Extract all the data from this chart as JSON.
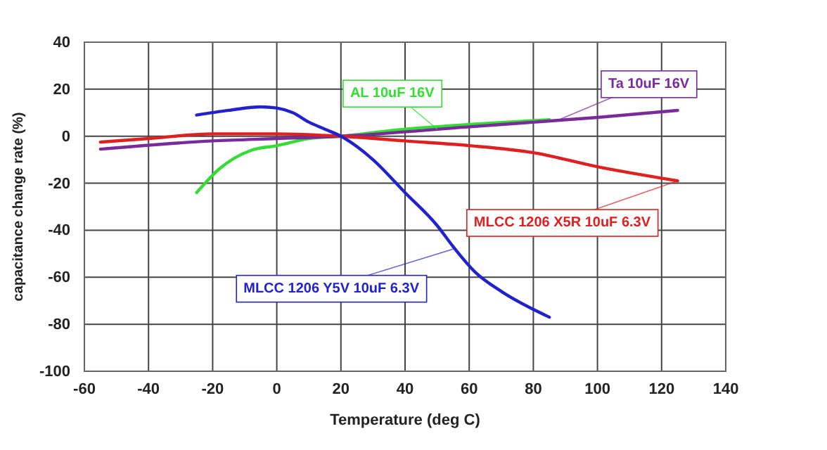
{
  "chart_data": {
    "type": "line",
    "xlabel": "Temperature (deg C)",
    "ylabel": "capacitance change rate (%)",
    "xlim": [
      -60,
      140
    ],
    "xticks": [
      -60,
      -40,
      -20,
      0,
      20,
      40,
      60,
      80,
      100,
      120,
      140
    ],
    "ylim": [
      -100,
      40
    ],
    "yticks": [
      -100,
      -80,
      -60,
      -40,
      -20,
      0,
      20,
      40
    ],
    "grid": true,
    "legend": false,
    "marker": "none",
    "line_style": "solid",
    "series": [
      {
        "name": "AL  10uF 16V",
        "color": "#33dd33",
        "x": [
          -25,
          -18,
          -8,
          0,
          10,
          20,
          40,
          60,
          85
        ],
        "values": [
          -24,
          -14,
          -6,
          -4,
          -1,
          0,
          3,
          5,
          7
        ]
      },
      {
        "name": "Ta  10uF 16V",
        "color": "#7a2a9a",
        "x": [
          -55,
          -20,
          0,
          20,
          60,
          100,
          125
        ],
        "values": [
          -5.5,
          -2,
          -1,
          0,
          4,
          8,
          11
        ]
      },
      {
        "name": "MLCC 1206 X5R 10uF 6.3V",
        "color": "#e02020",
        "x": [
          -55,
          -40,
          -20,
          0,
          20,
          40,
          60,
          80,
          100,
          125
        ],
        "values": [
          -2.5,
          -1,
          1,
          1,
          0,
          -2,
          -4,
          -7,
          -13,
          -19
        ]
      },
      {
        "name": "MLCC 1206 Y5V 10uF 6.3V",
        "color": "#2222cc",
        "x": [
          -25,
          -15,
          -5,
          0,
          5,
          10,
          15,
          20,
          30,
          40,
          50,
          55,
          62,
          70,
          85
        ],
        "values": [
          9,
          11,
          12.5,
          12,
          10,
          6,
          3,
          0,
          -10,
          -24,
          -38,
          -47,
          -58,
          -66,
          -77
        ]
      }
    ]
  }
}
